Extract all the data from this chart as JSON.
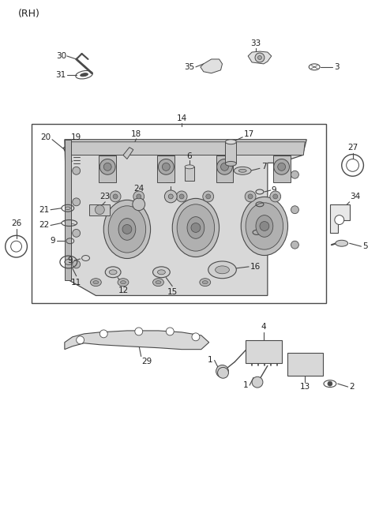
{
  "bg_color": "#ffffff",
  "line_color": "#4a4a4a",
  "fig_width": 4.8,
  "fig_height": 6.55,
  "dpi": 100
}
